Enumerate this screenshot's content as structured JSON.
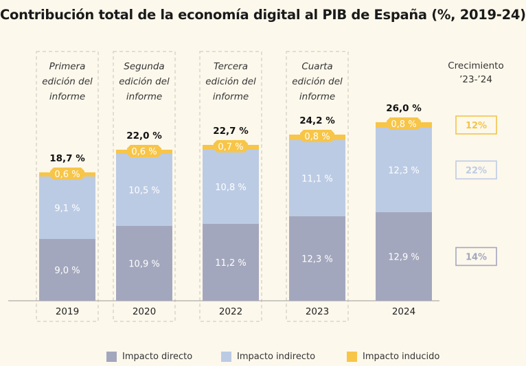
{
  "chart_data": {
    "type": "bar",
    "stacked": true,
    "title": "Contribución total de la economía digital al PIB de España (%, 2019-24)",
    "categories": [
      "2019",
      "2020",
      "2022",
      "2023",
      "2024"
    ],
    "edition_labels": [
      [
        "Primera",
        "edición del",
        "informe"
      ],
      [
        "Segunda",
        "edición del",
        "informe"
      ],
      [
        "Tercera",
        "edición del",
        "informe"
      ],
      [
        "Cuarta",
        "edición del",
        "informe"
      ]
    ],
    "totals": [
      18.7,
      22.0,
      22.7,
      24.2,
      26.0
    ],
    "total_labels": [
      "18,7 %",
      "22,0 %",
      "22,7 %",
      "24,2 %",
      "26,0 %"
    ],
    "series": [
      {
        "name": "Impacto directo",
        "color": "#a3a7bd",
        "label_color": "#ffffff",
        "values": [
          9.0,
          10.9,
          11.2,
          12.3,
          12.9
        ],
        "labels": [
          "9,0 %",
          "10,9 %",
          "11,2 %",
          "12,3 %",
          "12,9 %"
        ]
      },
      {
        "name": "Impacto indirecto",
        "color": "#bccbe4",
        "label_color": "#ffffff",
        "values": [
          9.1,
          10.5,
          10.8,
          11.1,
          12.3
        ],
        "labels": [
          "9,1 %",
          "10,5 %",
          "10,8 %",
          "11,1 %",
          "12,3 %"
        ]
      },
      {
        "name": "Impacto inducido",
        "color": "#f7c548",
        "label_color": "#ffffff",
        "values": [
          0.6,
          0.6,
          0.7,
          0.8,
          0.8
        ],
        "labels": [
          "0,6 %",
          "0,6 %",
          "0,7 %",
          "0,8 %",
          "0,8 %"
        ]
      }
    ],
    "growth": {
      "title_line1": "Crecimiento",
      "title_line2": "’23-’24",
      "items": [
        {
          "series": "Impacto inducido",
          "label": "12%",
          "color": "#f2c449"
        },
        {
          "series": "Impacto indirecto",
          "label": "22%",
          "color": "#bccbe4"
        },
        {
          "series": "Impacto directo",
          "label": "14%",
          "color": "#a3a7bd"
        }
      ]
    },
    "ylim": [
      0,
      26.0
    ]
  }
}
